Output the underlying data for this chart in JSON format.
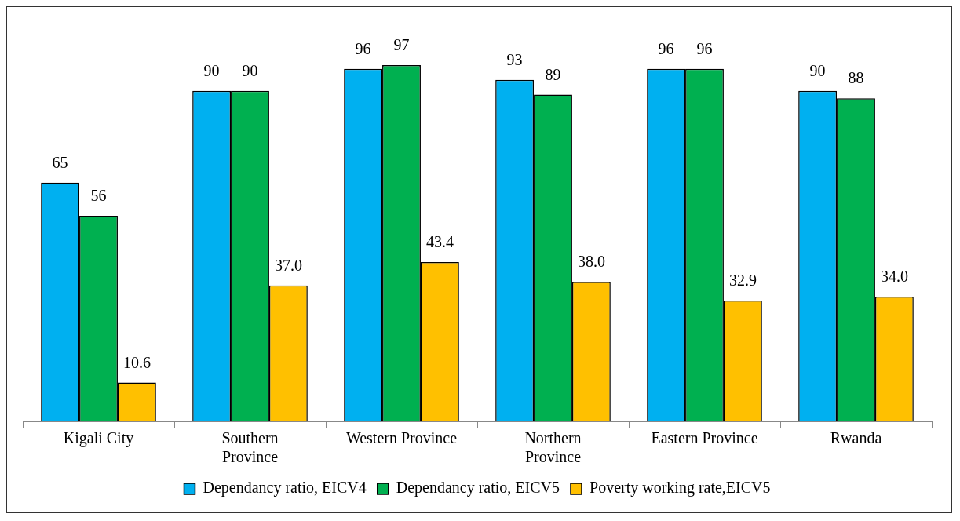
{
  "chart_data": {
    "type": "bar",
    "categories": [
      "Kigali City",
      "Southern Province",
      "Western Province",
      "Northern Province",
      "Eastern Province",
      "Rwanda"
    ],
    "legend": "bottom",
    "grid": false,
    "series": [
      {
        "name": "Dependancy ratio, EICV4",
        "color": "#00b0f0",
        "values": [
          65,
          90,
          96,
          93,
          96,
          90
        ],
        "value_labels": [
          "65",
          "90",
          "96",
          "93",
          "96",
          "90"
        ]
      },
      {
        "name": "Dependancy ratio, EICV5",
        "color": "#00b050",
        "values": [
          56,
          90,
          97,
          89,
          96,
          88
        ],
        "value_labels": [
          "56",
          "90",
          "97",
          "89",
          "96",
          "88"
        ]
      },
      {
        "name": "Poverty working rate,EICV5",
        "color": "#ffc000",
        "values": [
          10.6,
          37.0,
          43.4,
          38.0,
          32.9,
          34.0
        ],
        "value_labels": [
          "10.6",
          "37.0",
          "43.4",
          "38.0",
          "32.9",
          "34.0"
        ]
      }
    ]
  }
}
